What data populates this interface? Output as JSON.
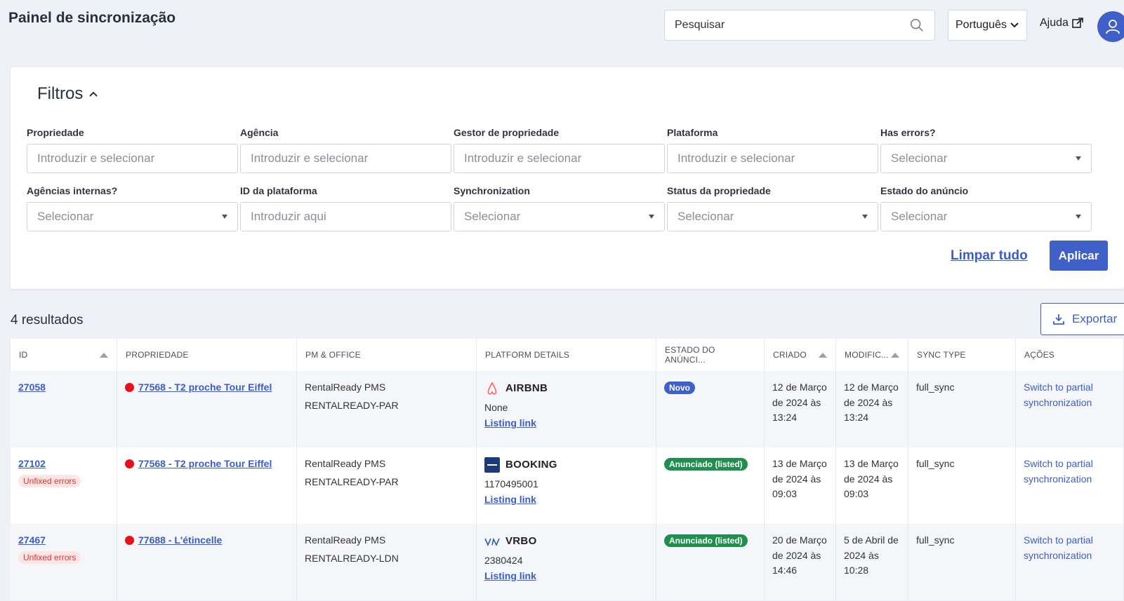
{
  "header": {
    "title": "Painel de sincronização",
    "search_placeholder": "Pesquisar",
    "language": "Português",
    "help": "Ajuda"
  },
  "filters": {
    "title": "Filtros",
    "fields": [
      {
        "label": "Propriedade",
        "placeholder": "Introduzir e selecionar"
      },
      {
        "label": "Agência",
        "placeholder": "Introduzir e selecionar"
      },
      {
        "label": "Gestor de propriedade",
        "placeholder": "Introduzir e selecionar"
      },
      {
        "label": "Plataforma",
        "placeholder": "Introduzir e selecionar"
      },
      {
        "label": "Has errors?",
        "placeholder": "Selecionar"
      },
      {
        "label": "Agências internas?",
        "placeholder": "Selecionar"
      },
      {
        "label": "ID da plataforma",
        "placeholder": "Introduzir aqui"
      },
      {
        "label": "Synchronization",
        "placeholder": "Selecionar"
      },
      {
        "label": "Status da propriedade",
        "placeholder": "Selecionar"
      },
      {
        "label": "Estado do anúncio",
        "placeholder": "Selecionar"
      }
    ],
    "clear_all": "Limpar tudo",
    "apply": "Aplicar"
  },
  "results": {
    "count_label": "4 resultados",
    "export": "Exportar"
  },
  "table": {
    "headers": [
      "ID",
      "PROPRIEDADE",
      "PM & OFFICE",
      "PLATFORM DETAILS",
      "ESTADO DO ANÚNCI...",
      "CRIADO",
      "MODIFIC...",
      "SYNC TYPE",
      "AÇÕES"
    ],
    "rows": [
      {
        "id": "27058",
        "error": "",
        "property": "77568 - T2 proche Tour Eiffel",
        "pm": "RentalReady PMS",
        "office": "RENTALREADY-PAR",
        "platform": "AIRBNB",
        "platform_id": "None",
        "listing_link": "Listing link",
        "status": "Novo",
        "status_color": "#3f5fc9",
        "created": "12 de Março de 2024 às 13:24",
        "modified": "12 de Março de 2024 às 13:24",
        "sync_type": "full_sync",
        "action": "Switch to partial synchronization"
      },
      {
        "id": "27102",
        "error": "Unfixed errors",
        "property": "77568 - T2 proche Tour Eiffel",
        "pm": "RentalReady PMS",
        "office": "RENTALREADY-PAR",
        "platform": "BOOKING",
        "platform_id": "1170495001",
        "listing_link": "Listing link",
        "status": "Anunciado (listed)",
        "status_color": "#1f8f4e",
        "created": "13 de Março de 2024 às 09:03",
        "modified": "13 de Março de 2024 às 09:03",
        "sync_type": "full_sync",
        "action": "Switch to partial synchronization"
      },
      {
        "id": "27467",
        "error": "Unfixed errors",
        "property": "77688 - L'étincelle",
        "pm": "RentalReady PMS",
        "office": "RENTALREADY-LDN",
        "platform": "VRBO",
        "platform_id": "2380424",
        "listing_link": "Listing link",
        "status": "Anunciado (listed)",
        "status_color": "#1f8f4e",
        "created": "20 de Março de 2024 às 14:46",
        "modified": "5 de Abril de 2024 às 10:28",
        "sync_type": "full_sync",
        "action": "Switch to partial synchronization"
      }
    ]
  }
}
